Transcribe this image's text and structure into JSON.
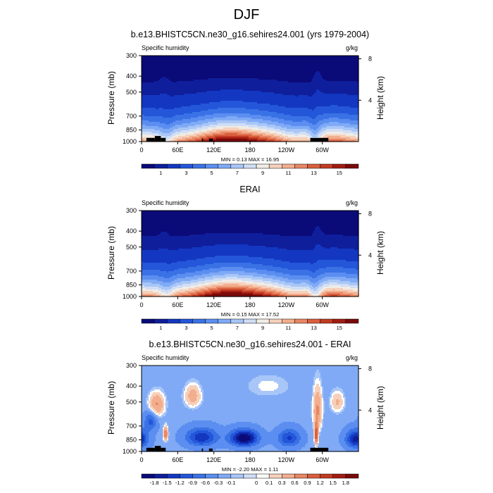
{
  "title": "DJF",
  "colors": {
    "abs_scale": [
      "#0a0a78",
      "#0f1e9b",
      "#1337c1",
      "#2456d9",
      "#3a72e6",
      "#5b8ef0",
      "#80aaf5",
      "#a8c6f7",
      "#d0def5",
      "#f0ece6",
      "#f6d0bb",
      "#f2ae8e",
      "#e88764",
      "#d95f3e",
      "#c23a22",
      "#a21d12",
      "#7a0a0a"
    ],
    "diff_scale": [
      "#0a0a78",
      "#0f1e9b",
      "#1337c1",
      "#2456d9",
      "#3a72e6",
      "#5b8ef0",
      "#80aaf5",
      "#a8c6f7",
      "#d0def5",
      "#ffffff",
      "#f6d0bb",
      "#f2ae8e",
      "#e88764",
      "#d95f3e",
      "#c23a22",
      "#a21d12",
      "#7a0a0a"
    ],
    "mask": "#000000"
  },
  "panels": [
    {
      "id": "model",
      "title": "b.e13.BHISTC5CN.ne30_g16.sehires24.001 (yrs 1979-2004)",
      "left_label": "Specific humidity",
      "right_label": "g/kg",
      "min_max": "MIN =   0.13  MAX =   16.95",
      "masked": true
    },
    {
      "id": "obs",
      "title": "ERAI",
      "left_label": "Specific humidity",
      "right_label": "g/kg",
      "min_max": "MIN =   0.15  MAX =   17.52",
      "masked": false
    },
    {
      "id": "diff",
      "title": "b.e13.BHISTC5CN.ne30_g16.sehires24.001 - ERAI",
      "left_label": "Specific humidity",
      "right_label": "g/kg",
      "min_max": "MIN =  -2.20  MAX =   1.11",
      "masked": true
    }
  ],
  "axes": {
    "ylabel": "Pressure (mb)",
    "ylabel_right": "Height (km)",
    "y_ticks": [
      "300",
      "400",
      "500",
      "700",
      "850",
      "1000"
    ],
    "y_right_ticks": [
      "8",
      "4"
    ],
    "x_ticks": [
      "0",
      "60E",
      "120E",
      "180",
      "120W",
      "60W"
    ]
  },
  "colorbars": {
    "abs_labels": [
      "1",
      "3",
      "5",
      "7",
      "9",
      "11",
      "13",
      "15"
    ],
    "diff_labels": [
      "-1.8",
      "-1.5",
      "-1.2",
      "-0.9",
      "-0.6",
      "-0.3",
      "-0.1",
      "0",
      "0.1",
      "0.3",
      "0.6",
      "0.9",
      "1.2",
      "1.5",
      "1.8"
    ]
  },
  "chart_data": [
    {
      "type": "heatmap",
      "title": "b.e13.BHISTC5CN.ne30_g16.sehires24.001 (yrs 1979-2004)",
      "variable": "Specific humidity",
      "units": "g/kg",
      "xlabel": "",
      "ylabel": "Pressure (mb)",
      "x": [
        0,
        60,
        120,
        180,
        240,
        300,
        360
      ],
      "x_tick_labels": [
        "0",
        "60E",
        "120E",
        "180",
        "120W",
        "60W"
      ],
      "y_pressure_mb": [
        300,
        400,
        500,
        700,
        850,
        1000
      ],
      "y_right_height_km": [
        8,
        4
      ],
      "contour_levels": [
        1,
        3,
        5,
        7,
        9,
        11,
        13,
        15
      ],
      "min": 0.13,
      "max": 16.95
    },
    {
      "type": "heatmap",
      "title": "ERAI",
      "variable": "Specific humidity",
      "units": "g/kg",
      "xlabel": "",
      "ylabel": "Pressure (mb)",
      "x": [
        0,
        60,
        120,
        180,
        240,
        300,
        360
      ],
      "x_tick_labels": [
        "0",
        "60E",
        "120E",
        "180",
        "120W",
        "60W"
      ],
      "y_pressure_mb": [
        300,
        400,
        500,
        700,
        850,
        1000
      ],
      "y_right_height_km": [
        8,
        4
      ],
      "contour_levels": [
        1,
        3,
        5,
        7,
        9,
        11,
        13,
        15
      ],
      "min": 0.15,
      "max": 17.52
    },
    {
      "type": "heatmap",
      "title": "b.e13.BHISTC5CN.ne30_g16.sehires24.001 - ERAI",
      "variable": "Specific humidity",
      "units": "g/kg",
      "xlabel": "",
      "ylabel": "Pressure (mb)",
      "x": [
        0,
        60,
        120,
        180,
        240,
        300,
        360
      ],
      "x_tick_labels": [
        "0",
        "60E",
        "120E",
        "180",
        "120W",
        "60W"
      ],
      "y_pressure_mb": [
        300,
        400,
        500,
        700,
        850,
        1000
      ],
      "y_right_height_km": [
        8,
        4
      ],
      "contour_levels": [
        -1.8,
        -1.5,
        -1.2,
        -0.9,
        -0.6,
        -0.3,
        -0.1,
        0,
        0.1,
        0.3,
        0.6,
        0.9,
        1.2,
        1.5,
        1.8
      ],
      "min": -2.2,
      "max": 1.11
    }
  ]
}
